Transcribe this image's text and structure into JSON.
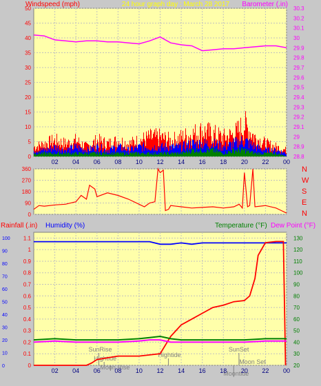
{
  "chart_data": [
    {
      "type": "line",
      "title": "24 hour graph day : March 28 2017",
      "left_axis_label": "Windspeed (mph)",
      "right_axis_label": "Barometer (.in)",
      "x_ticks": [
        "02",
        "04",
        "06",
        "08",
        "10",
        "12",
        "14",
        "16",
        "18",
        "20",
        "22",
        "00"
      ],
      "y_left_ticks": [
        "0",
        "5",
        "10",
        "15",
        "20",
        "25",
        "30",
        "35",
        "40",
        "45",
        "50"
      ],
      "y_left_range": [
        0,
        50
      ],
      "y_right_ticks": [
        "28.8",
        "28.9",
        "29",
        "29.1",
        "29.2",
        "29.3",
        "29.4",
        "29.5",
        "29.6",
        "29.7",
        "29.8",
        "29.9",
        "30",
        "30.1",
        "30.2",
        "30.3"
      ],
      "y_right_range": [
        28.8,
        30.3
      ],
      "series": [
        {
          "color": "#ff00ff",
          "axis": "right",
          "x": [
            0,
            1,
            2,
            3,
            4,
            5,
            6,
            7,
            8,
            9,
            10,
            11,
            12,
            13,
            14,
            15,
            16,
            17,
            18,
            19,
            20,
            21,
            22,
            23,
            24
          ],
          "values": [
            30.03,
            30.02,
            29.98,
            29.97,
            29.96,
            29.97,
            29.97,
            29.96,
            29.96,
            29.95,
            29.94,
            29.97,
            30.01,
            29.95,
            29.93,
            29.92,
            29.87,
            29.88,
            29.89,
            29.89,
            29.9,
            29.91,
            29.92,
            29.92,
            29.9
          ]
        },
        {
          "color": "#ff0000",
          "axis": "left",
          "x": [
            0,
            1,
            2,
            3,
            4,
            5,
            6,
            7,
            8,
            9,
            10,
            11,
            12,
            13,
            14,
            15,
            16,
            17,
            18,
            19,
            20,
            21,
            22,
            23,
            24
          ],
          "values": [
            3,
            4,
            5,
            4,
            5,
            3,
            5,
            4,
            5,
            4,
            5,
            6,
            6,
            5,
            6,
            7,
            8,
            7,
            6,
            7,
            10,
            6,
            4,
            3,
            2
          ]
        },
        {
          "color": "#0000ff",
          "axis": "left",
          "x": [
            0,
            1,
            2,
            3,
            4,
            5,
            6,
            7,
            8,
            9,
            10,
            11,
            12,
            13,
            14,
            15,
            16,
            17,
            18,
            19,
            20,
            21,
            22,
            23,
            24
          ],
          "values": [
            2,
            2,
            3,
            2,
            3,
            2,
            3,
            2,
            3,
            2,
            3,
            3,
            3,
            3,
            3,
            4,
            4,
            4,
            3,
            4,
            5,
            3,
            2,
            2,
            1
          ]
        },
        {
          "color": "#008000",
          "axis": "left",
          "x": [
            0,
            1,
            2,
            3,
            4,
            5,
            6,
            7,
            8,
            9,
            10,
            11,
            12,
            13,
            14,
            15,
            16,
            17,
            18,
            19,
            20,
            21,
            22,
            23,
            24
          ],
          "values": [
            1,
            1,
            1,
            1,
            1,
            1,
            1,
            1,
            1,
            1,
            1,
            1,
            1,
            1,
            1,
            2,
            2,
            2,
            1,
            2,
            2,
            1,
            1,
            1,
            0
          ]
        }
      ]
    },
    {
      "type": "line",
      "right_direction_labels": [
        "N",
        "W",
        "S",
        "E",
        "N"
      ],
      "y_ticks": [
        "0",
        "90",
        "180",
        "270",
        "360"
      ],
      "y_range": [
        0,
        360
      ],
      "x_range": [
        0,
        24
      ],
      "series": [
        {
          "color": "#ff0000",
          "x": [
            0,
            0.5,
            1,
            2,
            3,
            4,
            4.5,
            5,
            5.3,
            5.8,
            6,
            7,
            8,
            9,
            10,
            10.5,
            11,
            11.5,
            11.8,
            12,
            12.3,
            12.5,
            12.8,
            13,
            14,
            15,
            16,
            17,
            18,
            19,
            19.5,
            19.8,
            20,
            20.3,
            20.5,
            20.8,
            21,
            22,
            23,
            23.5,
            24
          ],
          "values": [
            40,
            70,
            65,
            75,
            80,
            100,
            150,
            120,
            230,
            200,
            140,
            170,
            150,
            120,
            80,
            60,
            90,
            100,
            360,
            330,
            350,
            30,
            40,
            70,
            60,
            50,
            55,
            60,
            50,
            60,
            80,
            50,
            330,
            60,
            70,
            360,
            60,
            70,
            50,
            30,
            10
          ]
        }
      ]
    },
    {
      "type": "line",
      "left_axis_labels": [
        "Rainfall (.in)",
        "Humidity (%)"
      ],
      "right_axis_labels": [
        "Temperature (°F)",
        "Dew Point (°F)"
      ],
      "x_ticks": [
        "02",
        "04",
        "06",
        "08",
        "10",
        "12",
        "14",
        "16",
        "18",
        "20",
        "22",
        "00"
      ],
      "y_humidity_ticks": [
        "0",
        "10",
        "20",
        "30",
        "40",
        "50",
        "60",
        "70",
        "80",
        "90",
        "100"
      ],
      "y_rain_ticks": [
        "0",
        "0.1",
        "0.2",
        "0.3",
        "0.4",
        "0.5",
        "0.6",
        "0.7",
        "0.8",
        "0.9",
        "1",
        "1.1"
      ],
      "y_rain_range": [
        0,
        1.15
      ],
      "y_temp_ticks": [
        "20",
        "30",
        "40",
        "50",
        "60",
        "70",
        "80",
        "90",
        "100",
        "110",
        "120",
        "130"
      ],
      "y_temp_range": [
        20,
        135
      ],
      "annotations": [
        "SunRise",
        "Hightide",
        "Moon Rise",
        "Hightide",
        "SunSet",
        "Moon Set",
        "Moontide"
      ],
      "series": [
        {
          "name": "Humidity (%)",
          "color": "#0000ff",
          "axis": "humidity",
          "x": [
            0,
            11,
            12,
            13,
            14,
            15,
            16,
            17,
            18,
            19,
            20,
            21,
            22,
            23,
            24
          ],
          "values": [
            97,
            97,
            95,
            95,
            96,
            95,
            96,
            96,
            96,
            96,
            96,
            96,
            96,
            96,
            96
          ]
        },
        {
          "name": "Rainfall (.in)",
          "color": "#ff0000",
          "axis": "rain",
          "x": [
            0,
            5,
            5.5,
            6,
            8,
            10,
            11,
            12,
            13,
            14,
            15,
            16,
            17,
            18,
            19,
            20,
            20.5,
            21,
            21.3,
            21.8,
            22,
            23,
            23.7,
            23.9
          ],
          "values": [
            0,
            0,
            0.02,
            0.05,
            0.08,
            0.08,
            0.09,
            0.1,
            0.25,
            0.35,
            0.4,
            0.45,
            0.5,
            0.52,
            0.55,
            0.56,
            0.6,
            0.75,
            0.95,
            1.03,
            1.06,
            1.07,
            1.07,
            0
          ]
        },
        {
          "name": "Temperature (°F)",
          "color": "#008000",
          "axis": "temp",
          "x": [
            0,
            2,
            4,
            6,
            8,
            10,
            11,
            12,
            13,
            14,
            16,
            18,
            20,
            22,
            24
          ],
          "values": [
            42,
            43,
            42,
            42,
            42,
            43,
            44,
            45,
            43,
            42,
            42,
            42,
            42,
            43,
            43
          ]
        },
        {
          "name": "Dew Point (°F)",
          "color": "#ff00ff",
          "axis": "temp",
          "x": [
            0,
            2,
            4,
            6,
            8,
            10,
            11,
            12,
            13,
            14,
            16,
            18,
            20,
            22,
            24
          ],
          "values": [
            40,
            41,
            40,
            40,
            40,
            41,
            42,
            42,
            40,
            40,
            40,
            40,
            40,
            41,
            41
          ]
        }
      ]
    }
  ]
}
